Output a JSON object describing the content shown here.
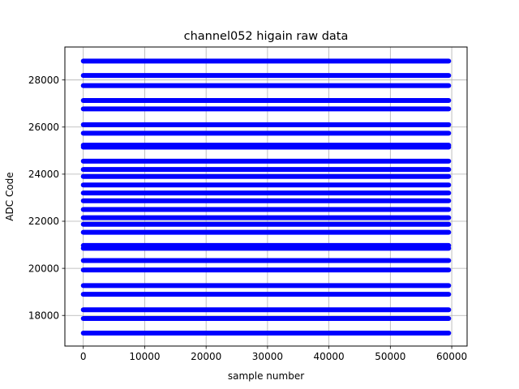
{
  "chart_data": {
    "type": "scatter",
    "title": "channel052 higain raw data",
    "xlabel": "sample number",
    "ylabel": "ADC Code",
    "xlim": [
      -3000,
      62500
    ],
    "ylim": [
      16700,
      29400
    ],
    "xticks": [
      0,
      10000,
      20000,
      30000,
      40000,
      50000,
      60000
    ],
    "yticks": [
      18000,
      20000,
      22000,
      24000,
      26000,
      28000
    ],
    "grid": true,
    "marker_color": "#0000ff",
    "series": [
      {
        "x_range": [
          0,
          59500
        ],
        "y_levels": [
          17250,
          17870,
          18240,
          18900,
          19270,
          19930,
          20330,
          20850,
          20970,
          21530,
          21870,
          22150,
          22500,
          22870,
          23200,
          23540,
          23900,
          24200,
          24550,
          25150,
          25230,
          25740,
          26100,
          26770,
          27130,
          27760,
          28190,
          28800
        ]
      }
    ]
  }
}
